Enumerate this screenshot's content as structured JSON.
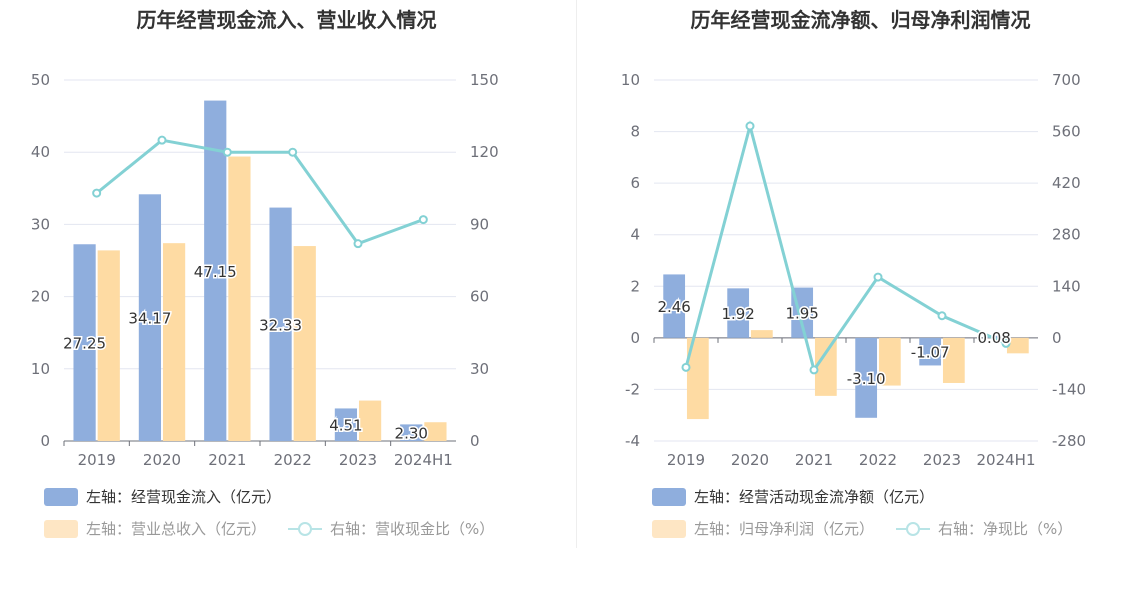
{
  "colors": {
    "cash_inflow": "#8faedd",
    "revenue": "#fedba3",
    "ratio_line": "#83d1d4",
    "grid": "#e3e6f0",
    "axis_text": "#6e7079",
    "label_text": "#333333"
  },
  "chart_data": [
    {
      "type": "bar",
      "title": "历年经营现金流入、营业收入情况",
      "categories": [
        "2019",
        "2020",
        "2021",
        "2022",
        "2023",
        "2024H1"
      ],
      "left_axis": {
        "ylim": [
          0,
          50
        ],
        "ticks": [
          "0",
          "10",
          "20",
          "30",
          "40",
          "50"
        ]
      },
      "right_axis": {
        "ylim": [
          0,
          150
        ],
        "ticks": [
          "0",
          "30",
          "60",
          "90",
          "120",
          "150"
        ]
      },
      "series": [
        {
          "name": "左轴：经营现金流入（亿元）",
          "axis": "left",
          "kind": "bar",
          "values": [
            27.25,
            34.17,
            47.15,
            32.33,
            4.51,
            2.3
          ],
          "labels": [
            "27.25",
            "34.17",
            "47.15",
            "32.33",
            "4.51",
            "2.30"
          ]
        },
        {
          "name": "左轴：营业总收入（亿元）",
          "axis": "left",
          "kind": "bar",
          "values": [
            26.4,
            27.4,
            39.4,
            27.0,
            5.6,
            2.6
          ]
        },
        {
          "name": "右轴：营收现金比（%）",
          "axis": "right",
          "kind": "line",
          "values": [
            103,
            125,
            120,
            120,
            82,
            92
          ]
        }
      ],
      "legend": "bottom-left",
      "grid": true
    },
    {
      "type": "bar",
      "title": "历年经营现金流净额、归母净利润情况",
      "categories": [
        "2019",
        "2020",
        "2021",
        "2022",
        "2023",
        "2024H1"
      ],
      "left_axis": {
        "ylim": [
          -4,
          10
        ],
        "ticks": [
          "-4",
          "-2",
          "0",
          "2",
          "4",
          "6",
          "8",
          "10"
        ]
      },
      "right_axis": {
        "ylim": [
          -280,
          700
        ],
        "ticks": [
          "-280",
          "-140",
          "0",
          "140",
          "280",
          "420",
          "560",
          "700"
        ]
      },
      "series": [
        {
          "name": "左轴：经营活动现金流净额（亿元）",
          "axis": "left",
          "kind": "bar",
          "values": [
            2.46,
            1.92,
            1.95,
            -3.1,
            -1.07,
            0.08
          ],
          "labels": [
            "2.46",
            "1.92",
            "1.95",
            "-3.10",
            "-1.07",
            "0.08"
          ]
        },
        {
          "name": "左轴：归母净利润（亿元）",
          "axis": "left",
          "kind": "bar",
          "values": [
            -3.15,
            0.3,
            -2.25,
            -1.85,
            -1.75,
            -0.6
          ]
        },
        {
          "name": "右轴：净现比（%）",
          "axis": "right",
          "kind": "line",
          "values": [
            -80,
            575,
            -87,
            165,
            60,
            -15
          ]
        }
      ],
      "legend": "bottom-left",
      "grid": true
    }
  ]
}
